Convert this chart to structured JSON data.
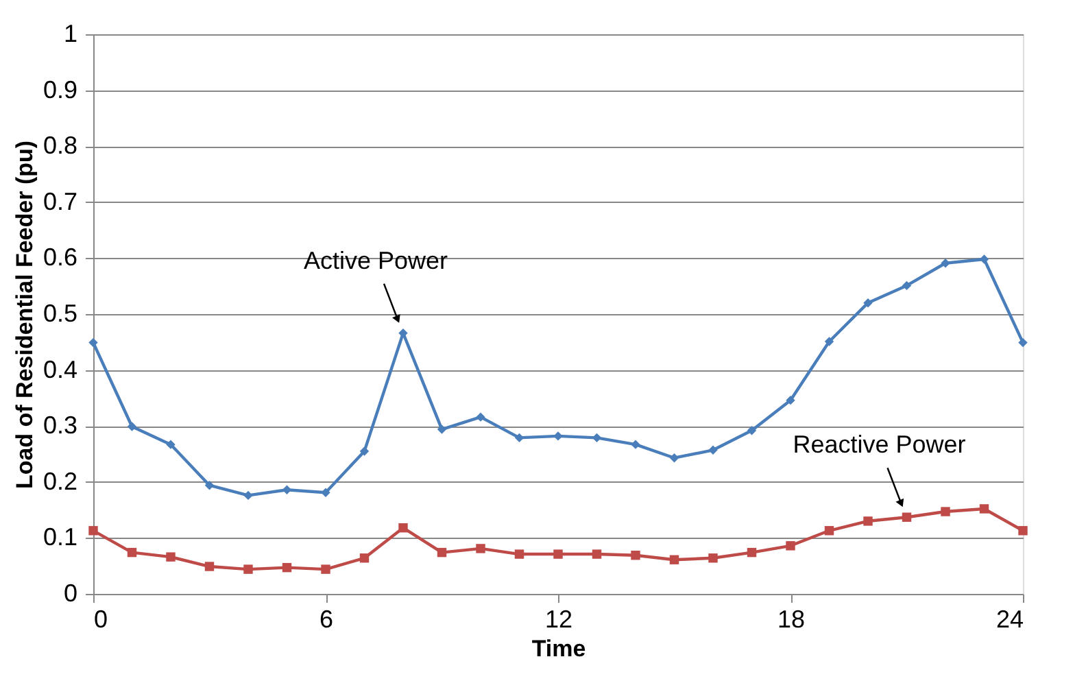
{
  "chart_data": {
    "type": "line",
    "xlabel": "Time",
    "ylabel": "Load of Residential Feeder (pu)",
    "x": [
      0,
      1,
      2,
      3,
      4,
      5,
      6,
      7,
      8,
      9,
      10,
      11,
      12,
      13,
      14,
      15,
      16,
      17,
      18,
      19,
      20,
      21,
      22,
      23,
      24
    ],
    "series": [
      {
        "color": "#4a7ebb",
        "marker": "diamond",
        "values": [
          0.449,
          0.299,
          0.267,
          0.194,
          0.176,
          0.186,
          0.181,
          0.255,
          0.466,
          0.294,
          0.316,
          0.279,
          0.282,
          0.279,
          0.267,
          0.243,
          0.257,
          0.292,
          0.346,
          0.451,
          0.52,
          0.551,
          0.591,
          0.598,
          0.449
        ]
      },
      {
        "color": "#be4b48",
        "marker": "square",
        "values": [
          0.113,
          0.074,
          0.066,
          0.049,
          0.044,
          0.047,
          0.044,
          0.064,
          0.118,
          0.074,
          0.081,
          0.071,
          0.071,
          0.071,
          0.069,
          0.061,
          0.064,
          0.074,
          0.086,
          0.113,
          0.13,
          0.137,
          0.147,
          0.152,
          0.113
        ]
      }
    ],
    "annotations": [
      {
        "text": "Active Power",
        "x": 8,
        "y": 0.466
      },
      {
        "text": "Reactive Power",
        "x": 21,
        "y": 0.137
      }
    ],
    "xlim": [
      0,
      24
    ],
    "xticks": [
      0,
      6,
      12,
      18,
      24
    ],
    "ylim": [
      0,
      1
    ],
    "yticks": [
      0,
      0.1,
      0.2,
      0.3,
      0.4,
      0.5,
      0.6,
      0.7,
      0.8,
      0.9,
      1
    ],
    "grid": "y",
    "line_style": "solid"
  }
}
